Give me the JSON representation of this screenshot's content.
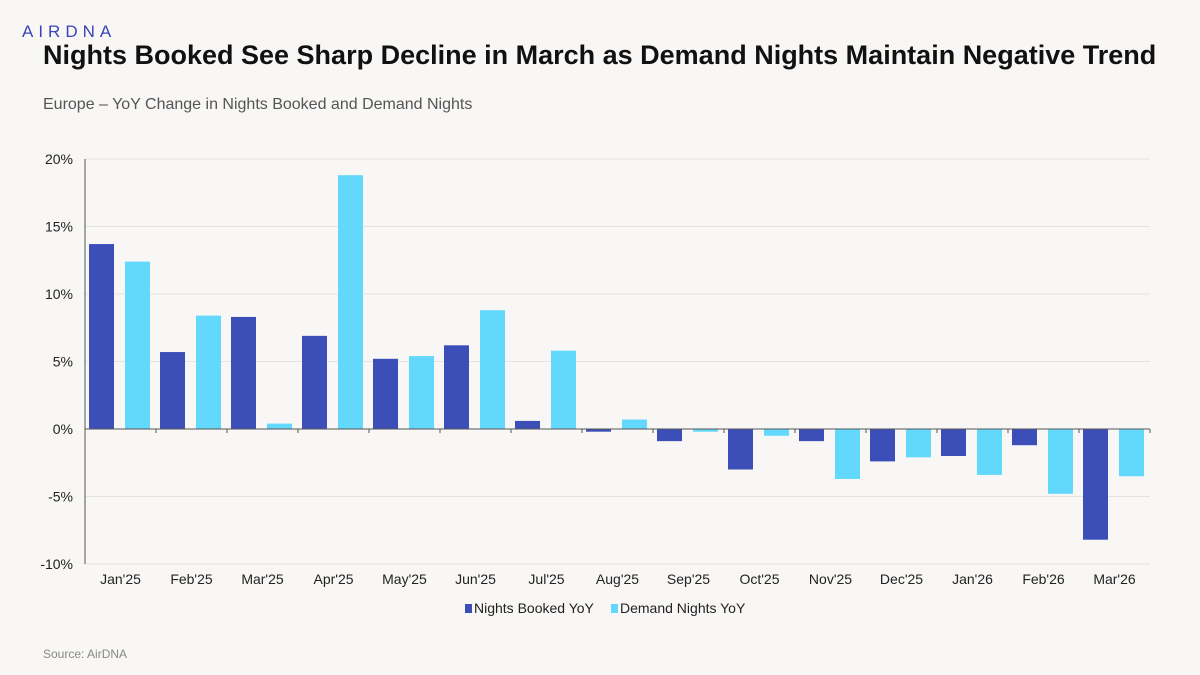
{
  "brand": {
    "logo_text": "AIRDNA"
  },
  "header": {
    "title": "Nights Booked See Sharp Decline in March as Demand Nights Maintain Negative Trend",
    "subtitle": "Europe – YoY Change in Nights Booked and Demand Nights"
  },
  "footer": {
    "source": "Source: AirDNA"
  },
  "colors": {
    "nights_booked": "#3c4fb8",
    "demand_nights": "#62d8fc"
  },
  "chart_data": {
    "type": "bar",
    "categories": [
      "Jan'25",
      "Feb'25",
      "Mar'25",
      "Apr'25",
      "May'25",
      "Jun'25",
      "Jul'25",
      "Aug'25",
      "Sep'25",
      "Oct'25",
      "Nov'25",
      "Dec'25",
      "Jan'26",
      "Feb'26",
      "Mar'26"
    ],
    "series": [
      {
        "name": "Nights Booked YoY",
        "values": [
          13.7,
          5.7,
          8.3,
          6.9,
          5.2,
          6.2,
          0.6,
          -0.2,
          -0.9,
          -3.0,
          -0.9,
          -2.4,
          -2.0,
          -1.2,
          -8.2
        ]
      },
      {
        "name": "Demand Nights YoY",
        "values": [
          12.4,
          8.4,
          0.4,
          18.8,
          5.4,
          8.8,
          5.8,
          0.7,
          -0.2,
          -0.5,
          -3.7,
          -2.1,
          -3.4,
          -4.8,
          -3.5
        ]
      }
    ],
    "ylim": [
      -10,
      20
    ],
    "yticks": [
      -10,
      -5,
      0,
      5,
      10,
      15,
      20
    ],
    "ytick_labels": [
      "-10%",
      "-5%",
      "0%",
      "5%",
      "10%",
      "15%",
      "20%"
    ],
    "grid": true,
    "legend": "bottom-center"
  }
}
